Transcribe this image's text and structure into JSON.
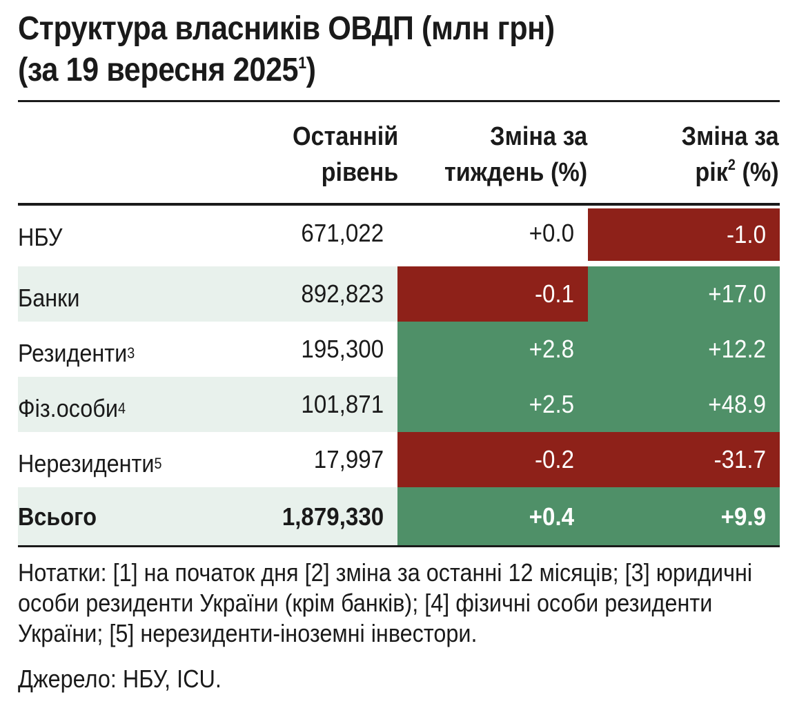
{
  "title": {
    "line1": "Структура власників ОВДП (млн грн)",
    "line2": "(за 19 вересня 2025",
    "line2_note": "1",
    "line2_end": ")"
  },
  "header": {
    "col_level": {
      "line1": "Останній",
      "line2": "рівень"
    },
    "col_week": {
      "line1": "Зміна за",
      "line2": "тиждень (%)"
    },
    "col_year": {
      "line1": "Зміна за",
      "line2_pre": "рік",
      "line2_note": "2",
      "line2_post": " (%)"
    }
  },
  "rows": [
    {
      "name": "НБУ",
      "note": "",
      "level": "671,022",
      "week": "+0.0",
      "year": "-1.0"
    },
    {
      "name": "Банки",
      "note": "",
      "level": "892,823",
      "week": "-0.1",
      "year": "+17.0"
    },
    {
      "name": "Резиденти",
      "note": "3",
      "level": "195,300",
      "week": "+2.8",
      "year": "+12.2"
    },
    {
      "name": "Фіз.особи",
      "note": "4",
      "level": "101,871",
      "week": "+2.5",
      "year": "+48.9"
    },
    {
      "name": "Нерезиденти",
      "note": "5",
      "level": "17,997",
      "week": "-0.2",
      "year": "-31.7"
    },
    {
      "name": "Всього",
      "note": "",
      "level": "1,879,330",
      "week": "+0.4",
      "year": "+9.9"
    }
  ],
  "colors": {
    "positive": "#4f9068",
    "negative": "#8e2119",
    "row_shade": "#e8f1ec"
  },
  "notes": "Нотатки: [1] на початок дня [2] зміна за останні 12 місяців; [3] юридичні особи  резиденти України (крім банків); [4] фізичні особи резиденти України; [5] нерезиденти-іноземні інвестори.",
  "source": "Джерело: НБУ, ICU."
}
